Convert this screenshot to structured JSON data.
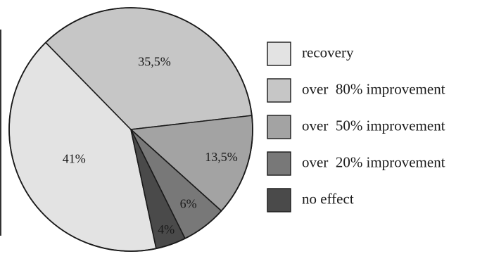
{
  "chart_data": {
    "type": "pie",
    "slices": [
      {
        "label": "recovery",
        "value": 41,
        "data_label": "41%",
        "color": "#e3e3e3"
      },
      {
        "label": "over  80% improvement",
        "value": 35.5,
        "data_label": "35,5%",
        "color": "#c6c6c6"
      },
      {
        "label": "over  50% improvement",
        "value": 13.5,
        "data_label": "13,5%",
        "color": "#a3a3a3"
      },
      {
        "label": "over  20% improvement",
        "value": 6,
        "data_label": "6%",
        "color": "#787878"
      },
      {
        "label": "no effect",
        "value": 4,
        "data_label": "4%",
        "color": "#4a4a4a"
      }
    ],
    "legend_position": "right"
  }
}
